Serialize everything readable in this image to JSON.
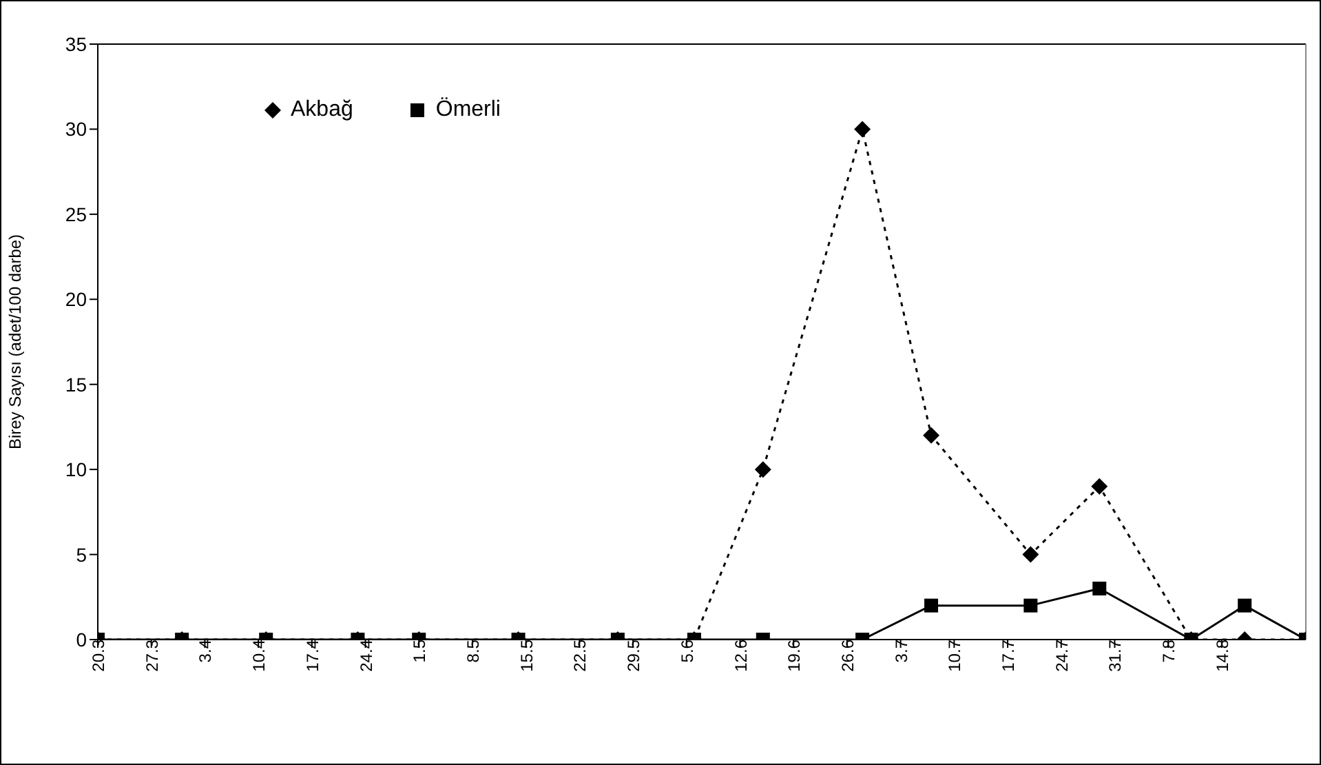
{
  "chart_data": {
    "type": "line",
    "ylabel": "Birey Sayısı (adet/100 darbe)",
    "x": [
      "--03-20",
      "--03-31",
      "--04-11",
      "--04-23",
      "--05-01",
      "--05-14",
      "--05-27",
      "--06-06",
      "--06-15",
      "--06-28",
      "--07-07",
      "--07-20",
      "--07-29",
      "--08-10",
      "--08-17",
      "--08-25"
    ],
    "series": [
      {
        "name": "Akbağ",
        "color": "#000000",
        "marker": "diamond",
        "line_style": "dotted",
        "values": [
          0,
          0,
          0,
          0,
          0,
          0,
          0,
          0,
          10,
          30,
          12,
          5,
          9,
          0,
          0,
          0
        ]
      },
      {
        "name": "Ömerli",
        "color": "#000000",
        "marker": "square",
        "line_style": "solid",
        "values": [
          0,
          0,
          0,
          0,
          0,
          0,
          0,
          0,
          0,
          0,
          2,
          2,
          3,
          0,
          2,
          0
        ]
      }
    ],
    "xlim": [
      "--03-20",
      "--08-25"
    ],
    "xticks": [
      {
        "value": "--03-20",
        "label": "20.3"
      },
      {
        "value": "--03-27",
        "label": "27.3"
      },
      {
        "value": "--04-03",
        "label": "3.4"
      },
      {
        "value": "--04-10",
        "label": "10.4"
      },
      {
        "value": "--04-17",
        "label": "17.4"
      },
      {
        "value": "--04-24",
        "label": "24.4"
      },
      {
        "value": "--05-01",
        "label": "1.5"
      },
      {
        "value": "--05-08",
        "label": "8.5"
      },
      {
        "value": "--05-15",
        "label": "15.5"
      },
      {
        "value": "--05-22",
        "label": "22.5"
      },
      {
        "value": "--05-29",
        "label": "29.5"
      },
      {
        "value": "--06-05",
        "label": "5.6"
      },
      {
        "value": "--06-12",
        "label": "12.6"
      },
      {
        "value": "--06-19",
        "label": "19.6"
      },
      {
        "value": "--06-26",
        "label": "26.6"
      },
      {
        "value": "--07-03",
        "label": "3.7"
      },
      {
        "value": "--07-10",
        "label": "10.7"
      },
      {
        "value": "--07-17",
        "label": "17.7"
      },
      {
        "value": "--07-24",
        "label": "24.7"
      },
      {
        "value": "--07-31",
        "label": "31.7"
      },
      {
        "value": "--08-07",
        "label": "7.8"
      },
      {
        "value": "--08-14",
        "label": "14.8"
      }
    ],
    "ylim": [
      0,
      35
    ],
    "yticks": [
      0,
      5,
      10,
      15,
      20,
      25,
      30,
      35
    ],
    "grid": false,
    "legend": "top left"
  }
}
